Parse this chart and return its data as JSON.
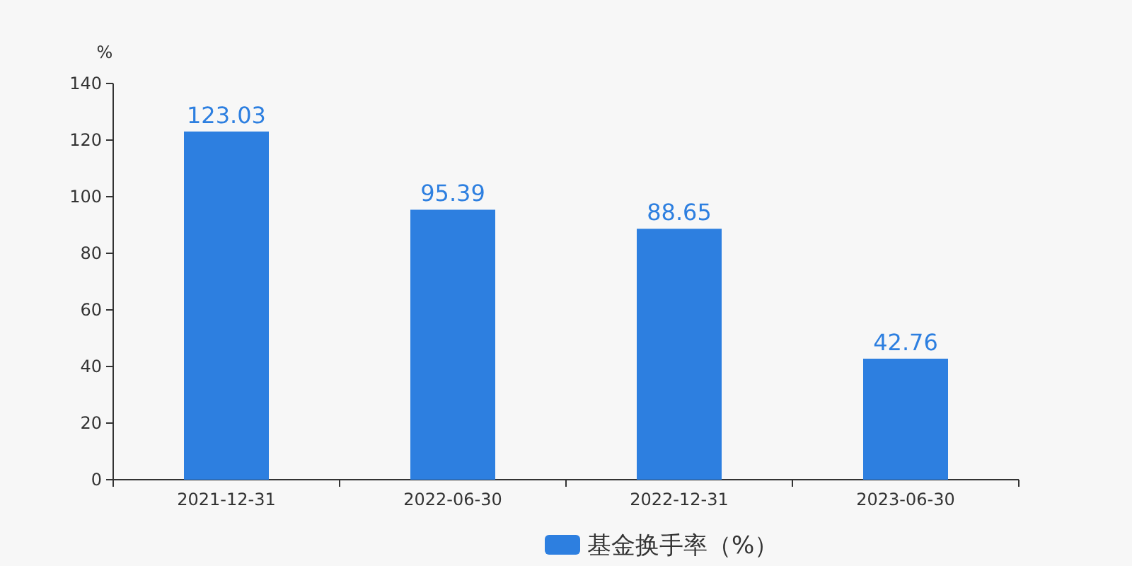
{
  "chart_data": {
    "type": "bar",
    "ylabel": "%",
    "categories": [
      "2021-12-31",
      "2022-06-30",
      "2022-12-31",
      "2023-06-30"
    ],
    "series": [
      {
        "name": "基金换手率（%）",
        "color": "#2d7fe0",
        "values": [
          123.03,
          95.39,
          88.65,
          42.76
        ]
      }
    ],
    "ylim": [
      0,
      140
    ],
    "yticks": [
      0,
      20,
      40,
      60,
      80,
      100,
      120,
      140
    ],
    "data_labels": true,
    "legend": "bottom",
    "grid": false
  }
}
